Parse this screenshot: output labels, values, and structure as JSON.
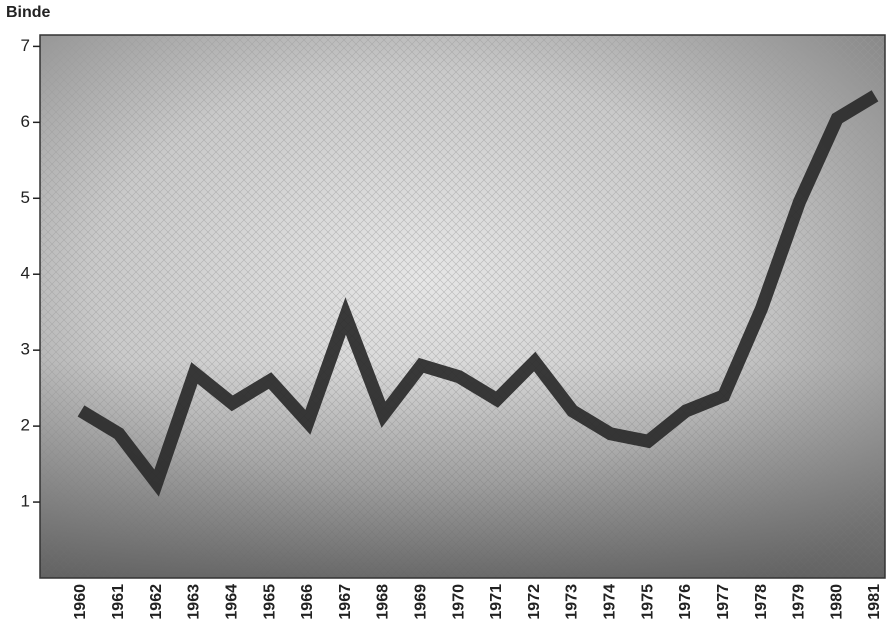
{
  "chart_data": {
    "type": "line",
    "y_label": "Binde",
    "categories": [
      "1960",
      "1961",
      "1962",
      "1963",
      "1964",
      "1965",
      "1966",
      "1967",
      "1968",
      "1969",
      "1970",
      "1971",
      "1972",
      "1973",
      "1974",
      "1975",
      "1976",
      "1977",
      "1978",
      "1979",
      "1980",
      "1981"
    ],
    "values": [
      2.2,
      1.9,
      1.25,
      2.7,
      2.3,
      2.6,
      2.05,
      3.45,
      2.15,
      2.8,
      2.65,
      2.35,
      2.85,
      2.2,
      1.9,
      1.8,
      2.2,
      2.4,
      3.55,
      4.95,
      6.05,
      6.35
    ],
    "color": "#2a2a2a",
    "ylim": [
      0,
      7.15
    ],
    "yticks": [
      1,
      2,
      3,
      4,
      5,
      6,
      7
    ],
    "grid": false
  }
}
